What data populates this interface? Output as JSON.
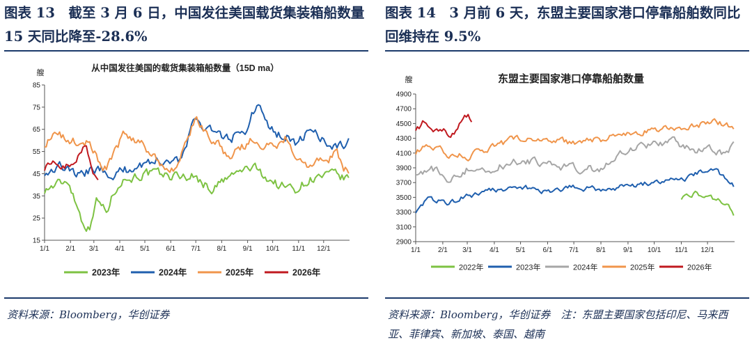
{
  "panels": [
    {
      "title": "图表 13　截至 3 月 6 日，中国发往美国载货集装箱船数量 15 天同比降至-28.6%",
      "source": "资料来源：Bloomberg，华创证券"
    },
    {
      "title": "图表 14　3 月前 6 天，东盟主要国家港口停靠船舶数同比回维持在 9.5%",
      "source": "资料来源：Bloomberg，华创证券　注：东盟主要国家包括印尼、马来西亚、菲律宾、新加坡、泰国、越南"
    }
  ],
  "chart_data": [
    {
      "type": "line",
      "title": "从中国发往美国的载货集装箱船数量（15D ma）",
      "ylabel": "艘",
      "ylim": [
        15,
        85
      ],
      "yticks": [
        "15",
        "25",
        "35",
        "45",
        "55",
        "65",
        "75",
        "85"
      ],
      "categories": [
        "1/1",
        "2/1",
        "3/1",
        "4/1",
        "5/1",
        "6/1",
        "7/1",
        "8/1",
        "9/1",
        "10/1",
        "11/1",
        "12/1"
      ],
      "legend_position": "bottom",
      "series": [
        {
          "name": "2023年",
          "color": "#7dc242",
          "start": 1,
          "end": 366,
          "noise": 3,
          "knots": [
            [
              1,
              38
            ],
            [
              30,
              42
            ],
            [
              45,
              25
            ],
            [
              55,
              20
            ],
            [
              62,
              34
            ],
            [
              75,
              28
            ],
            [
              90,
              42
            ],
            [
              120,
              45
            ],
            [
              150,
              44
            ],
            [
              180,
              44
            ],
            [
              200,
              38
            ],
            [
              230,
              45
            ],
            [
              250,
              48
            ],
            [
              280,
              40
            ],
            [
              300,
              38
            ],
            [
              320,
              43
            ],
            [
              350,
              44
            ],
            [
              366,
              42
            ]
          ]
        },
        {
          "name": "2024年",
          "color": "#1f5fae",
          "start": 1,
          "end": 366,
          "noise": 3,
          "knots": [
            [
              1,
              46
            ],
            [
              20,
              49
            ],
            [
              40,
              44
            ],
            [
              60,
              47
            ],
            [
              90,
              45
            ],
            [
              120,
              50
            ],
            [
              150,
              52
            ],
            [
              165,
              51
            ],
            [
              180,
              68
            ],
            [
              200,
              66
            ],
            [
              215,
              60
            ],
            [
              240,
              64
            ],
            [
              250,
              72
            ],
            [
              255,
              77
            ],
            [
              270,
              64
            ],
            [
              290,
              62
            ],
            [
              305,
              58
            ],
            [
              320,
              66
            ],
            [
              335,
              60
            ],
            [
              350,
              57
            ],
            [
              366,
              59
            ]
          ]
        },
        {
          "name": "2025年",
          "color": "#f0954b",
          "start": 1,
          "end": 366,
          "noise": 3,
          "knots": [
            [
              1,
              59
            ],
            [
              15,
              62
            ],
            [
              40,
              59
            ],
            [
              55,
              60
            ],
            [
              70,
              46
            ],
            [
              80,
              50
            ],
            [
              95,
              62
            ],
            [
              120,
              58
            ],
            [
              140,
              50
            ],
            [
              160,
              47
            ],
            [
              170,
              58
            ],
            [
              182,
              70
            ],
            [
              200,
              62
            ],
            [
              220,
              53
            ],
            [
              250,
              60
            ],
            [
              270,
              58
            ],
            [
              290,
              61
            ],
            [
              305,
              53
            ],
            [
              320,
              48
            ],
            [
              340,
              51
            ],
            [
              350,
              54
            ],
            [
              366,
              44
            ]
          ]
        },
        {
          "name": "2026年",
          "color": "#c0191f",
          "start": 1,
          "end": 65,
          "noise": 2.5,
          "knots": [
            [
              1,
              48
            ],
            [
              12,
              50
            ],
            [
              22,
              49
            ],
            [
              30,
              50
            ],
            [
              42,
              54
            ],
            [
              50,
              60
            ],
            [
              56,
              48
            ],
            [
              60,
              44
            ],
            [
              65,
              41
            ]
          ]
        }
      ]
    },
    {
      "type": "line",
      "title": "东盟主要国家港口停靠船舶数量",
      "ylabel": "艘",
      "ylim": [
        2900,
        4900
      ],
      "yticks": [
        "2900",
        "3100",
        "3300",
        "3500",
        "3700",
        "3900",
        "4100",
        "4300",
        "4500",
        "4700",
        "4900"
      ],
      "categories": [
        "1/1",
        "2/1",
        "3/1",
        "4/1",
        "5/1",
        "6/1",
        "7/1",
        "8/1",
        "9/1",
        "10/1",
        "11/1",
        "12/1"
      ],
      "legend_position": "bottom",
      "series": [
        {
          "name": "2022年",
          "color": "#7dc242",
          "start": 305,
          "end": 366,
          "noise": 45,
          "knots": [
            [
              305,
              3500
            ],
            [
              320,
              3560
            ],
            [
              335,
              3490
            ],
            [
              350,
              3450
            ],
            [
              360,
              3380
            ],
            [
              366,
              3220
            ]
          ]
        },
        {
          "name": "2023年",
          "color": "#1f5fae",
          "start": 1,
          "end": 366,
          "noise": 50,
          "knots": [
            [
              1,
              3320
            ],
            [
              15,
              3480
            ],
            [
              40,
              3430
            ],
            [
              60,
              3520
            ],
            [
              90,
              3600
            ],
            [
              120,
              3640
            ],
            [
              150,
              3580
            ],
            [
              180,
              3640
            ],
            [
              210,
              3600
            ],
            [
              240,
              3640
            ],
            [
              270,
              3700
            ],
            [
              300,
              3720
            ],
            [
              320,
              3800
            ],
            [
              335,
              3900
            ],
            [
              345,
              3840
            ],
            [
              355,
              3780
            ],
            [
              366,
              3660
            ]
          ]
        },
        {
          "name": "2024年",
          "color": "#a6a6a6",
          "start": 1,
          "end": 366,
          "noise": 70,
          "knots": [
            [
              1,
              3850
            ],
            [
              20,
              3880
            ],
            [
              40,
              3750
            ],
            [
              60,
              3880
            ],
            [
              90,
              3900
            ],
            [
              120,
              4000
            ],
            [
              150,
              3950
            ],
            [
              180,
              3900
            ],
            [
              210,
              3880
            ],
            [
              240,
              4150
            ],
            [
              270,
              4200
            ],
            [
              300,
              4250
            ],
            [
              320,
              4120
            ],
            [
              340,
              4150
            ],
            [
              355,
              4050
            ],
            [
              366,
              4250
            ]
          ]
        },
        {
          "name": "2025年",
          "color": "#f0954b",
          "start": 1,
          "end": 366,
          "noise": 60,
          "knots": [
            [
              1,
              4120
            ],
            [
              20,
              4200
            ],
            [
              40,
              4080
            ],
            [
              60,
              4050
            ],
            [
              90,
              4200
            ],
            [
              120,
              4300
            ],
            [
              150,
              4300
            ],
            [
              180,
              4220
            ],
            [
              210,
              4280
            ],
            [
              240,
              4350
            ],
            [
              270,
              4420
            ],
            [
              300,
              4450
            ],
            [
              320,
              4480
            ],
            [
              340,
              4520
            ],
            [
              355,
              4500
            ],
            [
              366,
              4460
            ]
          ]
        },
        {
          "name": "2026年",
          "color": "#c0191f",
          "start": 1,
          "end": 66,
          "noise": 70,
          "knots": [
            [
              1,
              4450
            ],
            [
              10,
              4520
            ],
            [
              20,
              4460
            ],
            [
              30,
              4420
            ],
            [
              42,
              4380
            ],
            [
              52,
              4500
            ],
            [
              60,
              4600
            ],
            [
              66,
              4540
            ]
          ]
        }
      ]
    }
  ]
}
